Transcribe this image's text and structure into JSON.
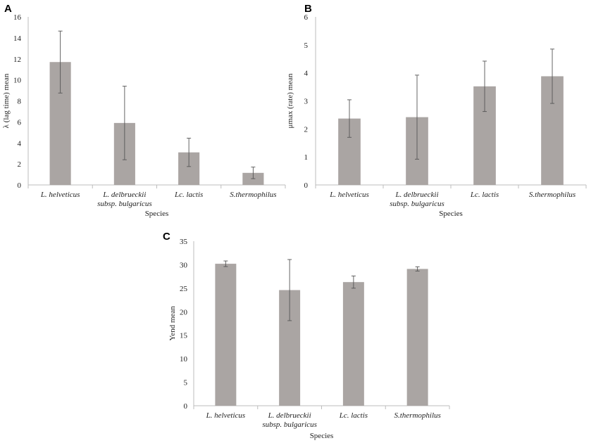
{
  "chart_data": [
    {
      "type": "bar",
      "title": "A",
      "categories": [
        [
          "L. helveticus"
        ],
        [
          "L. delbrueckii",
          "subsp. bulgaricus"
        ],
        [
          "Lc. lactis"
        ],
        [
          "S.thermophilus"
        ]
      ],
      "values": [
        11.7,
        5.9,
        3.1,
        1.15
      ],
      "errors": [
        2.95,
        3.5,
        1.35,
        0.55
      ],
      "xlabel": "Species",
      "ylabel": "λ (lag time) mean",
      "ylim": [
        0,
        16
      ],
      "yticks": [
        0,
        2,
        4,
        6,
        8,
        10,
        12,
        14,
        16
      ],
      "bar_color": "#aaa5a3",
      "grid": false
    },
    {
      "type": "bar",
      "title": "B",
      "categories": [
        [
          "L. helveticus"
        ],
        [
          "L. delbrueckii",
          "subsp. bulgaricus"
        ],
        [
          "Lc. lactis"
        ],
        [
          "S.thermophilus"
        ]
      ],
      "values": [
        2.37,
        2.42,
        3.52,
        3.88
      ],
      "errors": [
        0.67,
        1.5,
        0.9,
        0.97
      ],
      "xlabel": "Species",
      "ylabel": "μmax (rate) mean",
      "ylim": [
        0,
        6
      ],
      "yticks": [
        0,
        1,
        2,
        3,
        4,
        5,
        6
      ],
      "bar_color": "#aaa5a3",
      "grid": false
    },
    {
      "type": "bar",
      "title": "C",
      "categories": [
        [
          "L. helveticus"
        ],
        [
          "L. delbrueckii",
          "subsp. bulgaricus"
        ],
        [
          "Lc. lactis"
        ],
        [
          "S.thermophilus"
        ]
      ],
      "values": [
        30.2,
        24.6,
        26.3,
        29.1
      ],
      "errors": [
        0.6,
        6.5,
        1.3,
        0.45
      ],
      "xlabel": "Species",
      "ylabel": "Yend mean",
      "ylim": [
        0,
        35
      ],
      "yticks": [
        0,
        5,
        10,
        15,
        20,
        25,
        30,
        35
      ],
      "bar_color": "#aaa5a3",
      "grid": false
    }
  ]
}
